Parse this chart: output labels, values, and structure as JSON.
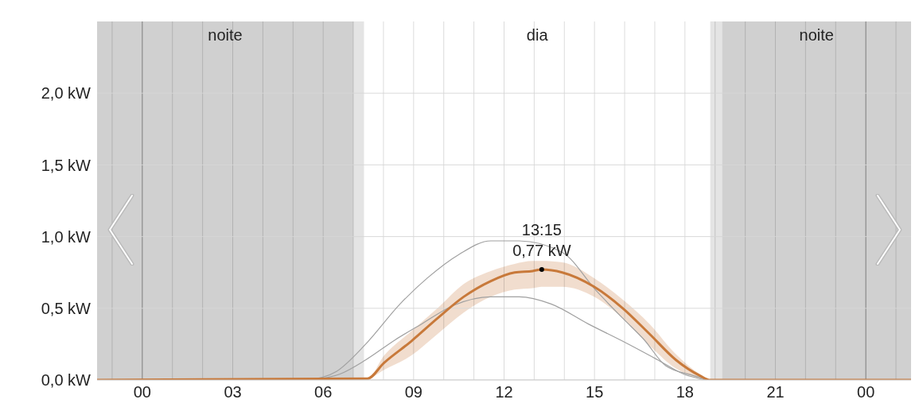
{
  "chart_data": {
    "type": "line",
    "xlim": [
      -1.5,
      25.5
    ],
    "xticks": [
      {
        "value": -1,
        "label": null
      },
      {
        "value": 0,
        "label": "00"
      },
      {
        "value": 1,
        "label": null
      },
      {
        "value": 2,
        "label": null
      },
      {
        "value": 3,
        "label": "03"
      },
      {
        "value": 4,
        "label": null
      },
      {
        "value": 5,
        "label": null
      },
      {
        "value": 6,
        "label": "06"
      },
      {
        "value": 7,
        "label": null
      },
      {
        "value": 8,
        "label": null
      },
      {
        "value": 9,
        "label": "09"
      },
      {
        "value": 10,
        "label": null
      },
      {
        "value": 11,
        "label": null
      },
      {
        "value": 12,
        "label": "12"
      },
      {
        "value": 13,
        "label": null
      },
      {
        "value": 14,
        "label": null
      },
      {
        "value": 15,
        "label": "15"
      },
      {
        "value": 16,
        "label": null
      },
      {
        "value": 17,
        "label": null
      },
      {
        "value": 18,
        "label": "18"
      },
      {
        "value": 19,
        "label": null
      },
      {
        "value": 20,
        "label": null
      },
      {
        "value": 21,
        "label": "21"
      },
      {
        "value": 22,
        "label": null
      },
      {
        "value": 23,
        "label": null
      },
      {
        "value": 24,
        "label": "00"
      },
      {
        "value": 25,
        "label": null
      }
    ],
    "ylim": [
      0,
      2.5
    ],
    "yticks": [
      {
        "value": 0,
        "label": "0,0 kW"
      },
      {
        "value": 0.5,
        "label": "0,5 kW"
      },
      {
        "value": 1,
        "label": "1,0 kW"
      },
      {
        "value": 1.5,
        "label": "1,5 kW"
      },
      {
        "value": 2,
        "label": "2,0 kW"
      }
    ],
    "grid": true,
    "marker": "none",
    "series": [
      {
        "color": "#a0a0a0",
        "x": [
          5.5,
          6.44,
          7.41,
          8.55,
          9.45,
          10.5,
          11.56,
          12.5,
          13.93,
          15.07,
          15.94,
          16.65,
          17.36,
          18.3,
          18.8
        ],
        "values": [
          0,
          0.06,
          0.25,
          0.53,
          0.71,
          0.875,
          0.97,
          0.97,
          0.89,
          0.62,
          0.43,
          0.28,
          0.1,
          0.03,
          0
        ]
      },
      {
        "color": "#a0a0a0",
        "x": [
          5.57,
          6.54,
          7.41,
          8.39,
          9.26,
          10.32,
          11.56,
          12.5,
          13.56,
          14.8,
          15.94,
          17.1,
          17.97,
          18.7
        ],
        "values": [
          0,
          0.04,
          0.14,
          0.28,
          0.39,
          0.52,
          0.58,
          0.58,
          0.53,
          0.39,
          0.27,
          0.14,
          0.04,
          0
        ]
      },
      {
        "color": "#c8793a",
        "x": [
          -1.5,
          7.47,
          8.02,
          8.92,
          9.79,
          10.66,
          11.56,
          12.35,
          12.95,
          13.25,
          13.93,
          14.99,
          15.94,
          16.83,
          17.7,
          18.5,
          18.84,
          25.5
        ],
        "values": [
          0,
          0.01,
          0.12,
          0.27,
          0.43,
          0.58,
          0.69,
          0.75,
          0.76,
          0.77,
          0.75,
          0.65,
          0.5,
          0.32,
          0.14,
          0.03,
          0,
          0
        ],
        "upper": [
          0,
          0.01,
          0.17,
          0.34,
          0.5,
          0.67,
          0.76,
          0.81,
          0.83,
          0.83,
          0.82,
          0.71,
          0.56,
          0.39,
          0.18,
          0.04,
          0,
          0
        ],
        "lower": [
          0,
          0.01,
          0.07,
          0.17,
          0.32,
          0.47,
          0.58,
          0.63,
          0.64,
          0.65,
          0.65,
          0.58,
          0.43,
          0.24,
          0.08,
          0.01,
          0,
          0
        ]
      }
    ],
    "bands": [
      {
        "axis": "x",
        "from": -1.5,
        "to": 7.0,
        "label": "noite",
        "color": "#d0d0d0"
      },
      {
        "axis": "x",
        "from": 7.0,
        "to": 7.36,
        "label": null,
        "color": "#e4e4e4"
      },
      {
        "axis": "x",
        "from": 7.36,
        "to": 18.84,
        "label": "dia",
        "color": "#ffffff"
      },
      {
        "axis": "x",
        "from": 18.84,
        "to": 19.23,
        "label": null,
        "color": "#e4e4e4"
      },
      {
        "axis": "x",
        "from": 19.23,
        "to": 25.5,
        "label": "noite",
        "color": "#d0d0d0"
      }
    ],
    "annotations": [
      {
        "text": "13:15\n0,77 kW",
        "x": 13.25,
        "y": 0.77
      }
    ]
  }
}
